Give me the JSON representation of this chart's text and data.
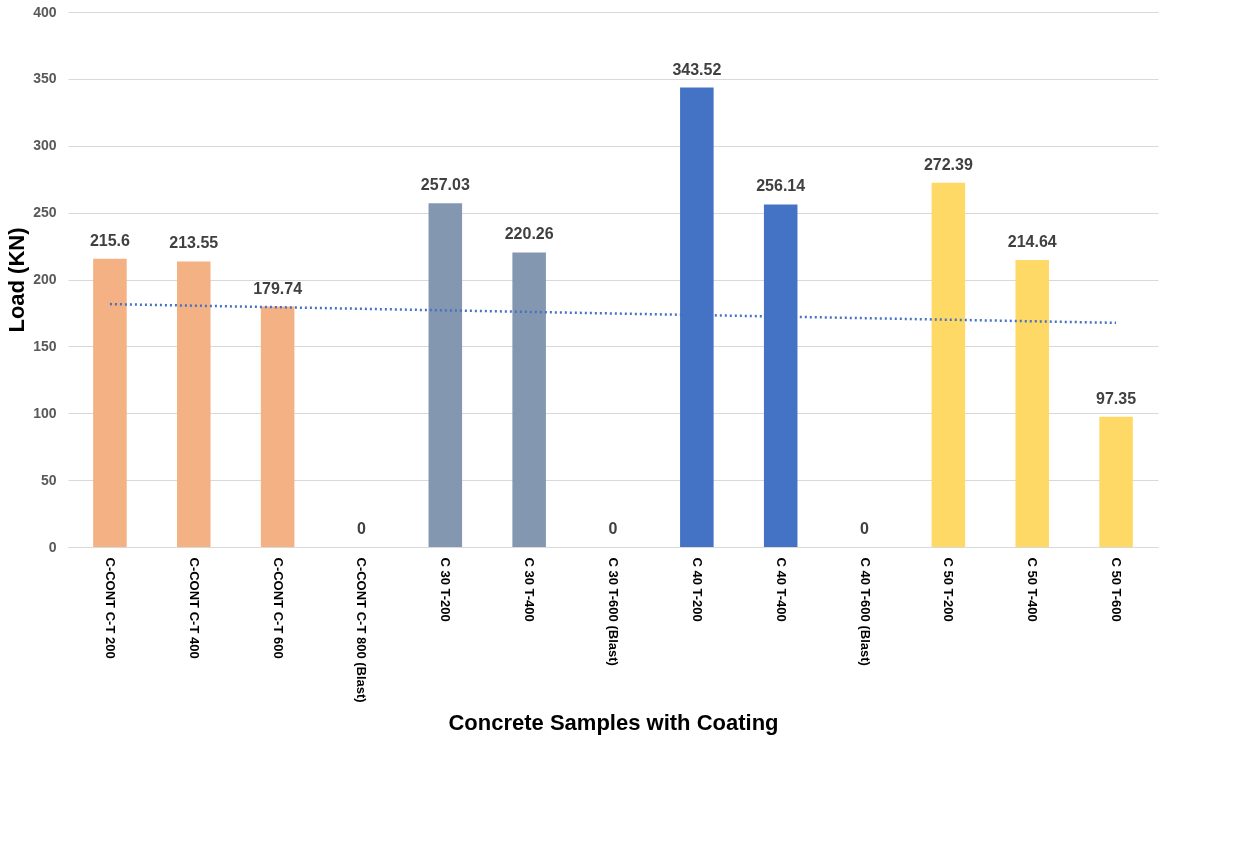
{
  "chart_data": {
    "type": "bar",
    "xlabel": "Concrete Samples with Coating",
    "ylabel": "Load (KN)",
    "categories": [
      "C-CONT C-T 200",
      "C-CONT C-T 400",
      "C-CONT C-T 600",
      "C-CONT C-T 800 (Blast)",
      "C 30 T-200",
      "C 30 T-400",
      "C 30 T-600 (Blast)",
      "C 40 T-200",
      "C 40 T-400",
      "C 40 T-600 (Blast)",
      "C 50 T-200",
      "C 50 T-400",
      "C 50 T-600"
    ],
    "series": [
      {
        "values": [
          215.6,
          213.55,
          179.74,
          0,
          257.03,
          220.26,
          0,
          343.52,
          256.14,
          0,
          272.39,
          214.64,
          97.35
        ],
        "value_labels": [
          "215.6",
          "213.55",
          "179.74",
          "0",
          "257.03",
          "220.26",
          "0",
          "343.52",
          "256.14",
          "0",
          "272.39",
          "214.64",
          "97.35"
        ],
        "colors": [
          "#f4b183",
          "#f4b183",
          "#f4b183",
          "#f4b183",
          "#8497b0",
          "#8497b0",
          "#8497b0",
          "#4472c4",
          "#4472c4",
          "#4472c4",
          "#ffd966",
          "#ffd966",
          "#ffd966"
        ]
      },
      {
        "type": "line",
        "x": [
          "C-CONT C-T 200",
          "C 50 T-600"
        ],
        "values": [
          181.6,
          167.6
        ],
        "color": "#4472c4",
        "line_style": "dotted"
      }
    ],
    "ylim": [
      0,
      400
    ],
    "yticks": [
      0,
      50,
      100,
      150,
      200,
      250,
      300,
      350,
      400
    ],
    "grid": "y"
  }
}
